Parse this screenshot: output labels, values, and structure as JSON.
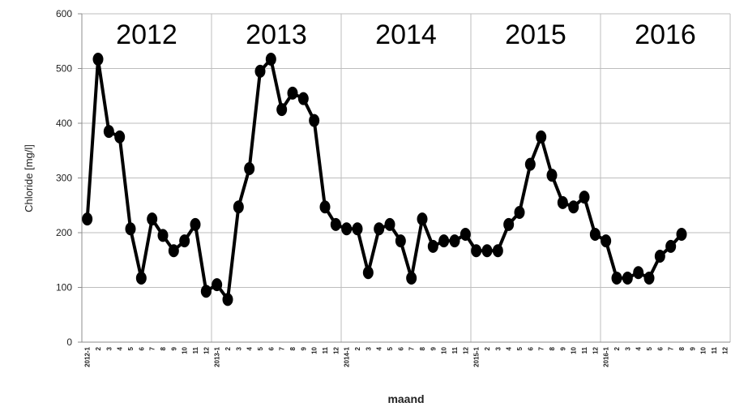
{
  "chart_data": {
    "type": "line",
    "ylabel": "Chloride [mg/l]",
    "xlabel": "maand",
    "ylim": [
      0,
      600
    ],
    "yticks": [
      0,
      100,
      200,
      300,
      400,
      500,
      600
    ],
    "grid": true,
    "year_labels": [
      "2012",
      "2013",
      "2014",
      "2015",
      "2016"
    ],
    "x_tick_labels": [
      "2012-1",
      "2",
      "3",
      "4",
      "5",
      "6",
      "7",
      "8",
      "9",
      "10",
      "11",
      "12",
      "2013-1",
      "2",
      "3",
      "4",
      "5",
      "6",
      "7",
      "8",
      "9",
      "10",
      "11",
      "12",
      "2014-1",
      "2",
      "3",
      "4",
      "5",
      "6",
      "7",
      "8",
      "9",
      "10",
      "11",
      "12",
      "2015-1",
      "2",
      "3",
      "4",
      "5",
      "6",
      "7",
      "8",
      "9",
      "10",
      "11",
      "12",
      "2016-1",
      "2",
      "3",
      "4",
      "5",
      "6",
      "7",
      "8",
      "9",
      "10",
      "11",
      "12"
    ],
    "series": [
      {
        "color": "#000000",
        "values": [
          225,
          517,
          385,
          375,
          207,
          117,
          225,
          195,
          167,
          185,
          215,
          93,
          105,
          78,
          247,
          317,
          495,
          517,
          425,
          455,
          445,
          405,
          247,
          215,
          207,
          207,
          127,
          207,
          215,
          185,
          117,
          225,
          175,
          185,
          185,
          197,
          167,
          167,
          167,
          215,
          237,
          325,
          375,
          305,
          255,
          247,
          265,
          197,
          185,
          117,
          117,
          127,
          117,
          157,
          175,
          197
        ]
      }
    ]
  }
}
